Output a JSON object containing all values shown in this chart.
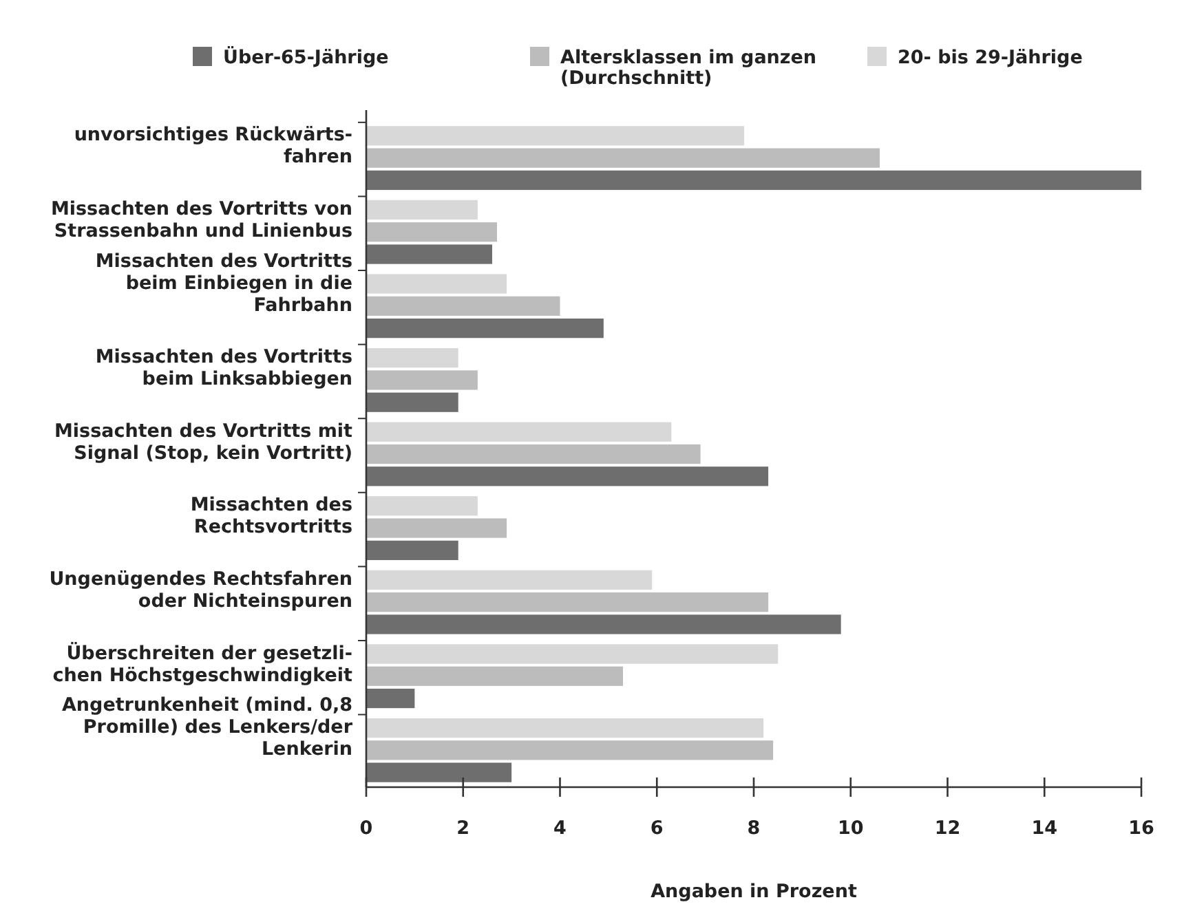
{
  "chart_data": {
    "type": "bar",
    "orientation": "horizontal",
    "categories": [
      "unvorsichtiges Rückwärts-\nfahren",
      "Missachten des Vortritts von\nStrassenbahn und Linienbus",
      "Missachten des Vortritts\nbeim Einbiegen in die\nFahrbahn",
      "Missachten des Vortritts\nbeim Linksabbiegen",
      "Missachten des Vortritts mit\nSignal (Stop, kein Vortritt)",
      "Missachten des\nRechtsvortritts",
      "Ungenügendes Rechtsfahren\noder Nichteinspuren",
      "Überschreiten der gesetzli-\nchen Höchstgeschwindigkeit",
      "Angetrunkenheit (mind. 0,8\nPromille) des Lenkers/der\nLenkerin"
    ],
    "series": [
      {
        "name": "Über-65-Jährige",
        "color": "#6e6e6e",
        "values": [
          16.0,
          2.6,
          4.9,
          1.9,
          8.3,
          1.9,
          9.8,
          1.0,
          3.0
        ]
      },
      {
        "name": "Altersklassen im ganzen\n(Durchschnitt)",
        "color": "#bcbcbc",
        "values": [
          10.6,
          2.7,
          4.0,
          2.3,
          6.9,
          2.9,
          8.3,
          5.3,
          8.4
        ]
      },
      {
        "name": "20- bis 29-Jährige",
        "color": "#d8d8d8",
        "values": [
          7.8,
          2.3,
          2.9,
          1.9,
          6.3,
          2.3,
          5.9,
          8.5,
          8.2
        ]
      }
    ],
    "xlim": [
      0,
      16
    ],
    "xticks": [
      0,
      2,
      4,
      6,
      8,
      10,
      12,
      14,
      16
    ],
    "xlabel": "Angaben in Prozent",
    "legend": "top",
    "grid": false
  }
}
